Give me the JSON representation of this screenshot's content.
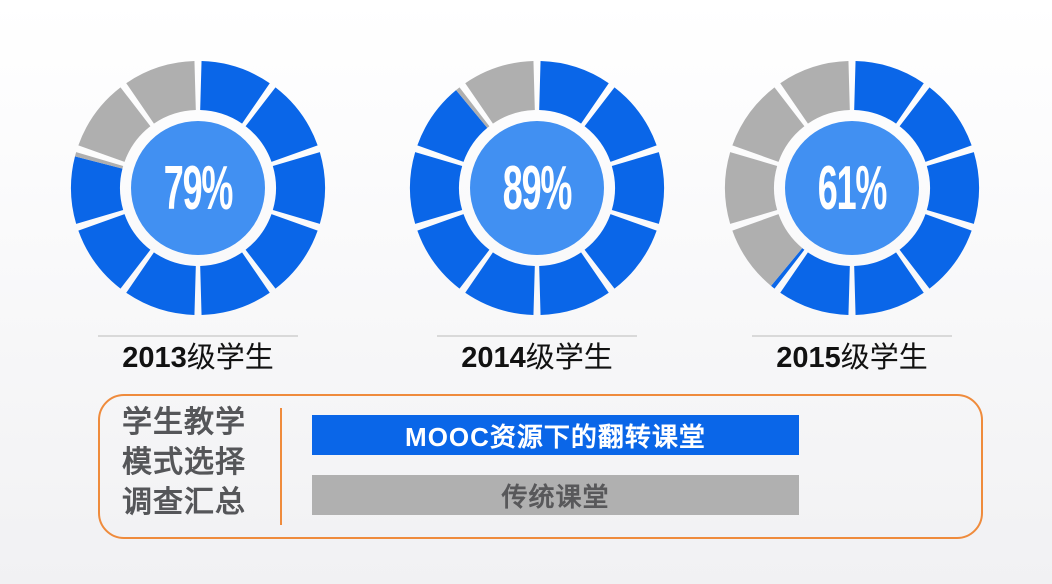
{
  "slide": {
    "background_top": "#ffffff",
    "background_bottom": "#f1f1f3"
  },
  "colors": {
    "primary_blue": "#0a66e8",
    "center_light_blue": "#4190f2",
    "empty_gray": "#afafaf",
    "bar_gray": "#b0b0b0",
    "orange_border": "#ef8b3c",
    "dark_gray_text": "#555659",
    "caption_text": "#111111"
  },
  "chart_data": [
    {
      "type": "donut",
      "title": "2013级学生",
      "caption_year": "2013",
      "caption_suffix": "级学生",
      "percent": 79,
      "percent_label": "79%",
      "segments": 10,
      "start_angle_deg": 0,
      "direction": "clockwise",
      "filled_color": "#0a66e8",
      "empty_color": "#afafaf",
      "center_color": "#4190f2",
      "series": [
        {
          "name": "MOOC资源下的翻转课堂",
          "value": 79
        },
        {
          "name": "传统课堂",
          "value": 21
        }
      ]
    },
    {
      "type": "donut",
      "title": "2014级学生",
      "caption_year": "2014",
      "caption_suffix": "级学生",
      "percent": 89,
      "percent_label": "89%",
      "segments": 10,
      "start_angle_deg": 0,
      "direction": "clockwise",
      "filled_color": "#0a66e8",
      "empty_color": "#afafaf",
      "center_color": "#4190f2",
      "series": [
        {
          "name": "MOOC资源下的翻转课堂",
          "value": 89
        },
        {
          "name": "传统课堂",
          "value": 11
        }
      ]
    },
    {
      "type": "donut",
      "title": "2015级学生",
      "caption_year": "2015",
      "caption_suffix": "级学生",
      "percent": 61,
      "percent_label": "61%",
      "segments": 10,
      "start_angle_deg": 0,
      "direction": "clockwise",
      "filled_color": "#0a66e8",
      "empty_color": "#afafaf",
      "center_color": "#4190f2",
      "series": [
        {
          "name": "MOOC资源下的翻转课堂",
          "value": 61
        },
        {
          "name": "传统课堂",
          "value": 39
        }
      ]
    }
  ],
  "legend_box": {
    "title_lines": [
      "学生教学",
      "模式选择",
      "调查汇总"
    ],
    "bars": [
      {
        "label": "MOOC资源下的翻转课堂",
        "color": "#0a66e8",
        "text_color": "#ffffff"
      },
      {
        "label": "传统课堂",
        "color": "#b0b0b0",
        "text_color": "#58585a"
      }
    ]
  }
}
